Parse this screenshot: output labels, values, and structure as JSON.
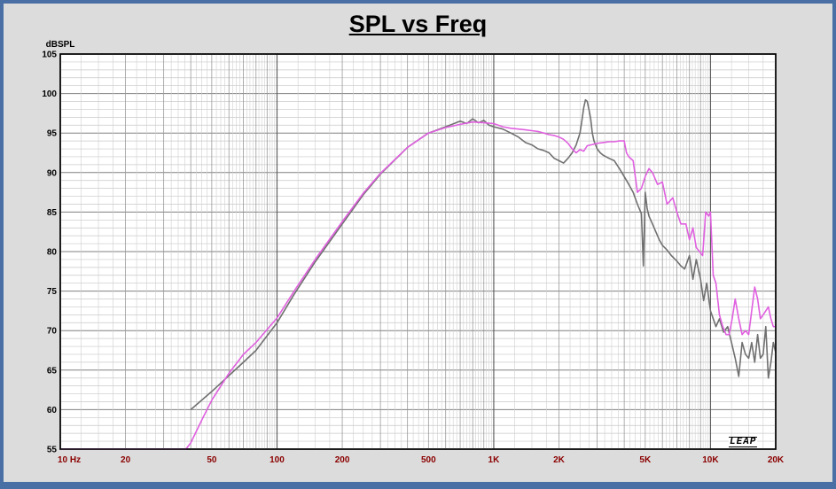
{
  "chart_data": {
    "type": "line",
    "title": "SPL vs Freq",
    "ylabel": "dBSPL",
    "xlabel": "",
    "x_scale": "log",
    "xlim": [
      10,
      20000
    ],
    "ylim": [
      55,
      105
    ],
    "grid": true,
    "y_ticks": [
      55,
      60,
      65,
      70,
      75,
      80,
      85,
      90,
      95,
      100,
      105
    ],
    "x_ticks": [
      {
        "value": 10,
        "label": "10 Hz"
      },
      {
        "value": 20,
        "label": "20"
      },
      {
        "value": 50,
        "label": "50"
      },
      {
        "value": 100,
        "label": "100"
      },
      {
        "value": 200,
        "label": "200"
      },
      {
        "value": 500,
        "label": "500"
      },
      {
        "value": 1000,
        "label": "1K"
      },
      {
        "value": 2000,
        "label": "2K"
      },
      {
        "value": 5000,
        "label": "5K"
      },
      {
        "value": 10000,
        "label": "10K"
      },
      {
        "value": 20000,
        "label": "20K"
      }
    ],
    "series": [
      {
        "color": "#707070",
        "x": [
          40,
          50,
          60,
          70,
          80,
          100,
          120,
          150,
          200,
          250,
          300,
          400,
          500,
          600,
          700,
          750,
          800,
          850,
          900,
          950,
          1000,
          1100,
          1200,
          1300,
          1400,
          1500,
          1600,
          1700,
          1800,
          1900,
          2000,
          2100,
          2200,
          2300,
          2400,
          2500,
          2550,
          2600,
          2650,
          2700,
          2750,
          2800,
          2850,
          2900,
          3000,
          3100,
          3200,
          3400,
          3600,
          3800,
          4000,
          4200,
          4400,
          4600,
          4800,
          4900,
          5000,
          5050,
          5100,
          5200,
          5400,
          5600,
          5800,
          6000,
          6300,
          6600,
          7000,
          7300,
          7600,
          8000,
          8300,
          8600,
          9000,
          9300,
          9600,
          10000,
          10300,
          10600,
          11000,
          11500,
          12000,
          12500,
          13000,
          13500,
          14000,
          14500,
          15000,
          15500,
          16000,
          16500,
          17000,
          17500,
          18000,
          18500,
          19000,
          19500,
          20000
        ],
        "y": [
          60,
          62.3,
          64.3,
          66,
          67.5,
          71,
          74.6,
          78.7,
          83.5,
          87.2,
          89.8,
          93.2,
          95,
          95.8,
          96.5,
          96.2,
          96.8,
          96.3,
          96.6,
          96,
          95.8,
          95.5,
          95,
          94.5,
          93.8,
          93.5,
          93,
          92.8,
          92.5,
          91.8,
          91.5,
          91.2,
          91.8,
          92.5,
          93.5,
          95,
          96.5,
          98.2,
          99.2,
          99,
          98,
          96.8,
          95,
          94,
          93,
          92.5,
          92.2,
          91.8,
          91.5,
          90.5,
          89.5,
          88.5,
          87.5,
          86,
          84.8,
          78.2,
          87.5,
          86.5,
          85.5,
          84.5,
          83.5,
          82.5,
          81.5,
          80.8,
          80.2,
          79.5,
          78.8,
          78.2,
          77.8,
          79.5,
          76.5,
          79,
          76.5,
          73.8,
          76,
          72.5,
          71.5,
          70.5,
          71.5,
          69.8,
          70.5,
          68.5,
          66.5,
          64.2,
          68.5,
          67,
          66.5,
          68.5,
          66,
          69.5,
          66.5,
          67,
          70.5,
          64,
          66,
          68.5,
          67.2
        ]
      },
      {
        "color": "#e060e0",
        "x": [
          10,
          38,
          40,
          45,
          50,
          60,
          70,
          80,
          100,
          120,
          150,
          200,
          250,
          300,
          400,
          500,
          600,
          700,
          800,
          900,
          1000,
          1100,
          1200,
          1300,
          1400,
          1500,
          1600,
          1700,
          1800,
          1900,
          2000,
          2100,
          2200,
          2300,
          2400,
          2500,
          2600,
          2700,
          2800,
          3000,
          3200,
          3400,
          3600,
          3800,
          4000,
          4100,
          4200,
          4400,
          4600,
          4800,
          5000,
          5200,
          5400,
          5700,
          6000,
          6300,
          6700,
          7000,
          7300,
          7700,
          8000,
          8300,
          8600,
          8900,
          9200,
          9500,
          9800,
          10000,
          10300,
          10600,
          11000,
          11400,
          11800,
          12200,
          12600,
          13000,
          13500,
          14000,
          14500,
          15000,
          15500,
          16000,
          16500,
          17000,
          17500,
          18000,
          18500,
          19000,
          19500,
          20000
        ],
        "y": [
          55,
          55,
          55.8,
          58.7,
          61.2,
          64.6,
          67,
          68.5,
          71.6,
          75,
          79,
          83.8,
          87.4,
          89.9,
          93.2,
          95,
          95.7,
          96.1,
          96.4,
          96.3,
          96.2,
          95.8,
          95.6,
          95.5,
          95.4,
          95.3,
          95.2,
          95,
          94.8,
          94.7,
          94.5,
          94.2,
          93.7,
          93,
          92.5,
          92.9,
          92.7,
          93.4,
          93.5,
          93.7,
          93.8,
          93.9,
          93.9,
          94,
          94,
          92.5,
          92,
          91.5,
          87.5,
          88,
          89.5,
          90.5,
          90,
          88.5,
          88.8,
          86,
          86.8,
          85,
          83.5,
          83.5,
          81.5,
          83,
          80.5,
          80,
          79.5,
          85,
          84.5,
          85,
          77,
          76,
          72,
          70.5,
          69.5,
          69.5,
          71.5,
          74,
          71.5,
          69.5,
          70,
          69.5,
          72.5,
          75.5,
          74,
          71.5,
          72,
          72.5,
          73,
          71.5,
          70.5,
          70.5
        ]
      }
    ]
  }
}
